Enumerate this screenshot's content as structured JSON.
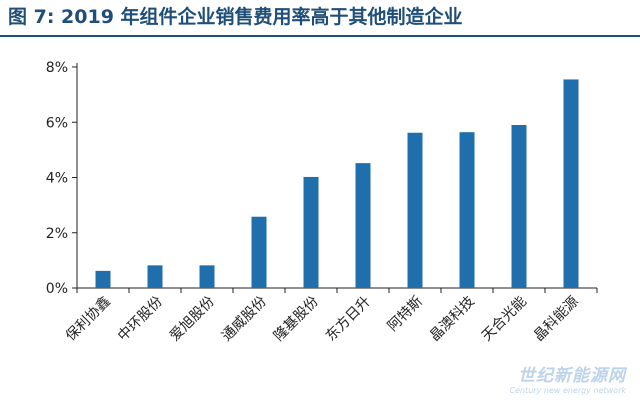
{
  "header": {
    "title": "图 7:  2019 年组件企业销售费用率高于其他制造企业"
  },
  "watermark": {
    "main": "世纪新能源网",
    "sub": "Century new energy network"
  },
  "chart_data": {
    "type": "bar",
    "title": "",
    "xlabel": "",
    "ylabel": "",
    "categories": [
      "保利协鑫",
      "中环股份",
      "爱旭股份",
      "通威股份",
      "隆基股份",
      "东方日升",
      "阿特斯",
      "晶澳科技",
      "天合光能",
      "晶科能源"
    ],
    "values": [
      0.62,
      0.82,
      0.82,
      2.58,
      4.02,
      4.52,
      5.62,
      5.64,
      5.9,
      7.55
    ],
    "ylim": [
      0,
      8
    ],
    "yticks": [
      0,
      2,
      4,
      6,
      8
    ],
    "ytick_labels": [
      "0%",
      "2%",
      "4%",
      "6%",
      "8%"
    ],
    "grid": false,
    "bar_color": "#1f6fad",
    "axis_color": "#222222"
  }
}
